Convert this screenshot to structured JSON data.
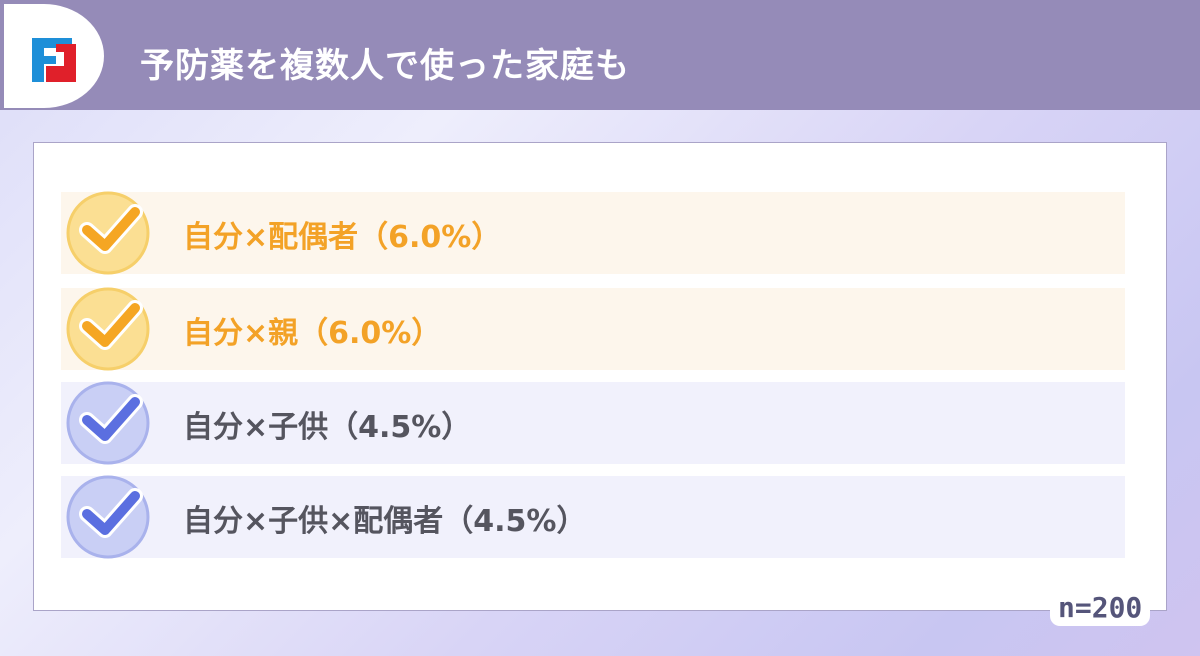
{
  "header": {
    "title": "予防薬を複数人で使った家庭も",
    "logo": "brand-logo"
  },
  "colors": {
    "header": "#958bb8",
    "orange": "#f3a227",
    "blue": "#5b6fe0",
    "text": "#55555f"
  },
  "items": [
    {
      "label": "自分×配偶者（6.0%）",
      "value": 6.0,
      "style": "orange"
    },
    {
      "label": "自分×親（6.0%）",
      "value": 6.0,
      "style": "orange"
    },
    {
      "label": "自分×子供（4.5%）",
      "value": 4.5,
      "style": "blue"
    },
    {
      "label": "自分×子供×配偶者（4.5%）",
      "value": 4.5,
      "style": "blue"
    }
  ],
  "sample_size": "n=200"
}
